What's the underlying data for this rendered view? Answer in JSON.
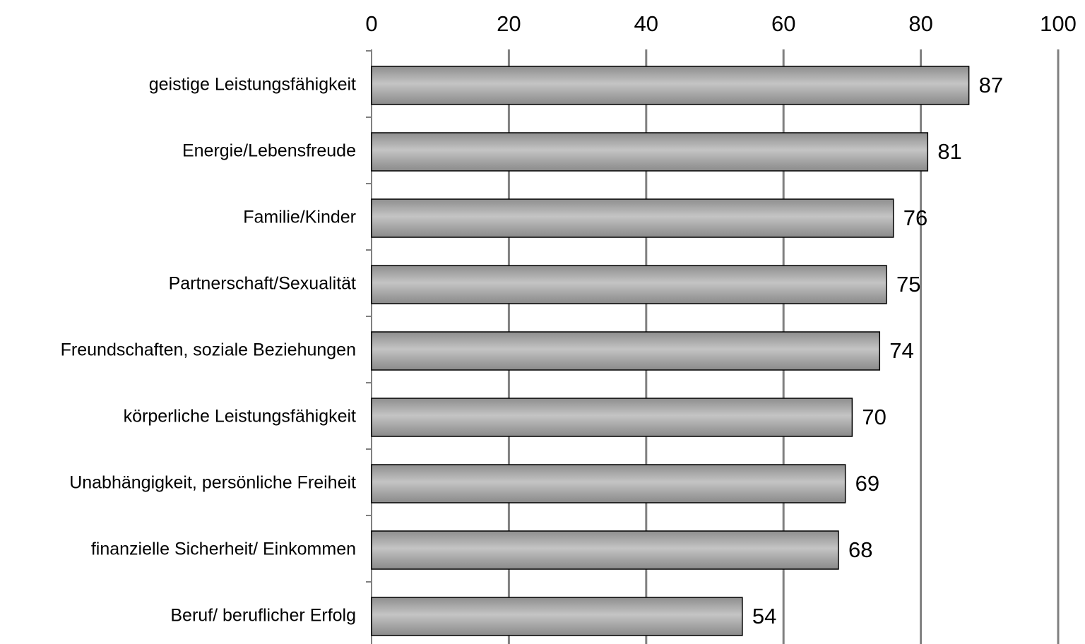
{
  "chart_data": {
    "type": "bar",
    "orientation": "horizontal",
    "categories": [
      "geistige Leistungsfähigkeit",
      "Energie/Lebensfreude",
      "Familie/Kinder",
      "Partnerschaft/Sexualität",
      "Freundschaften, soziale Beziehungen",
      "körperliche Leistungsfähigkeit",
      "Unabhängigkeit, persönliche Freiheit",
      "finanzielle Sicherheit/ Einkommen",
      "Beruf/ beruflicher Erfolg"
    ],
    "values": [
      87,
      81,
      76,
      75,
      74,
      70,
      69,
      68,
      54
    ],
    "xlim": [
      0,
      100
    ],
    "xticks": [
      0,
      20,
      40,
      60,
      80,
      100
    ],
    "xtick_labels": [
      "0",
      "20",
      "40",
      "60",
      "80",
      "100"
    ],
    "x_axis_position": "top",
    "grid": "vertical",
    "data_labels": true,
    "bar_color": "#a9a9a9",
    "gridline_color": "#808080",
    "title": "",
    "xlabel": "",
    "ylabel": ""
  }
}
